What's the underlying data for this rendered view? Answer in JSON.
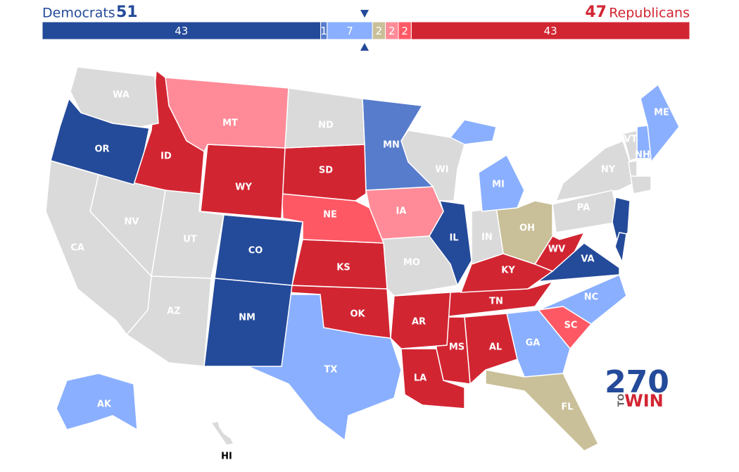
{
  "header": {
    "dem_label": "Democrats",
    "dem_total": 51,
    "rep_total": 47,
    "rep_label": "Republicans"
  },
  "seat_bar": {
    "segments": [
      {
        "value": 43,
        "color": "#244a9a"
      },
      {
        "value": 1,
        "color": "#577ccc"
      },
      {
        "value": 7,
        "color": "#8aafff"
      },
      {
        "value": 2,
        "color": "#c9bf98"
      },
      {
        "value": 2,
        "color": "#ff8b98"
      },
      {
        "value": 2,
        "color": "#ff5865"
      },
      {
        "value": 43,
        "color": "#d22532"
      }
    ]
  },
  "states": [
    {
      "label": "WA",
      "color": "#dadada"
    },
    {
      "label": "OR",
      "color": "#244a9a"
    },
    {
      "label": "CA",
      "color": "#dadada"
    },
    {
      "label": "NV",
      "color": "#dadada"
    },
    {
      "label": "ID",
      "color": "#d22532"
    },
    {
      "label": "MT",
      "color": "#ff8b98"
    },
    {
      "label": "WY",
      "color": "#d22532"
    },
    {
      "label": "UT",
      "color": "#dadada"
    },
    {
      "label": "AZ",
      "color": "#dadada"
    },
    {
      "label": "CO",
      "color": "#244a9a"
    },
    {
      "label": "NM",
      "color": "#244a9a"
    },
    {
      "label": "ND",
      "color": "#dadada"
    },
    {
      "label": "SD",
      "color": "#d22532"
    },
    {
      "label": "NE",
      "color": "#ff5865"
    },
    {
      "label": "KS",
      "color": "#d22532"
    },
    {
      "label": "OK",
      "color": "#d22532"
    },
    {
      "label": "TX",
      "color": "#8aafff"
    },
    {
      "label": "MN",
      "color": "#577ccc"
    },
    {
      "label": "IA",
      "color": "#ff8b98"
    },
    {
      "label": "MO",
      "color": "#dadada"
    },
    {
      "label": "AR",
      "color": "#d22532"
    },
    {
      "label": "LA",
      "color": "#d22532"
    },
    {
      "label": "WI",
      "color": "#dadada"
    },
    {
      "label": "IL",
      "color": "#244a9a"
    },
    {
      "label": "MI",
      "color": "#8aafff"
    },
    {
      "label": "IN",
      "color": "#dadada"
    },
    {
      "label": "OH",
      "color": "#c9bf98"
    },
    {
      "label": "KY",
      "color": "#d22532"
    },
    {
      "label": "TN",
      "color": "#d22532"
    },
    {
      "label": "MS",
      "color": "#d22532"
    },
    {
      "label": "AL",
      "color": "#d22532"
    },
    {
      "label": "GA",
      "color": "#8aafff"
    },
    {
      "label": "FL",
      "color": "#c9bf98"
    },
    {
      "label": "SC",
      "color": "#ff5865"
    },
    {
      "label": "NC",
      "color": "#8aafff"
    },
    {
      "label": "VA",
      "color": "#244a9a"
    },
    {
      "label": "WV",
      "color": "#d22532"
    },
    {
      "label": "PA",
      "color": "#dadada"
    },
    {
      "label": "NY",
      "color": "#dadada"
    },
    {
      "label": "VT",
      "color": "#dadada"
    },
    {
      "label": "NH",
      "color": "#8aafff"
    },
    {
      "label": "ME",
      "color": "#8aafff"
    },
    {
      "label": "AK",
      "color": "#8aafff"
    },
    {
      "label": "HI",
      "color": "#dadada"
    }
  ],
  "logo": {
    "number": "270",
    "to": "TO",
    "win": "WIN"
  }
}
